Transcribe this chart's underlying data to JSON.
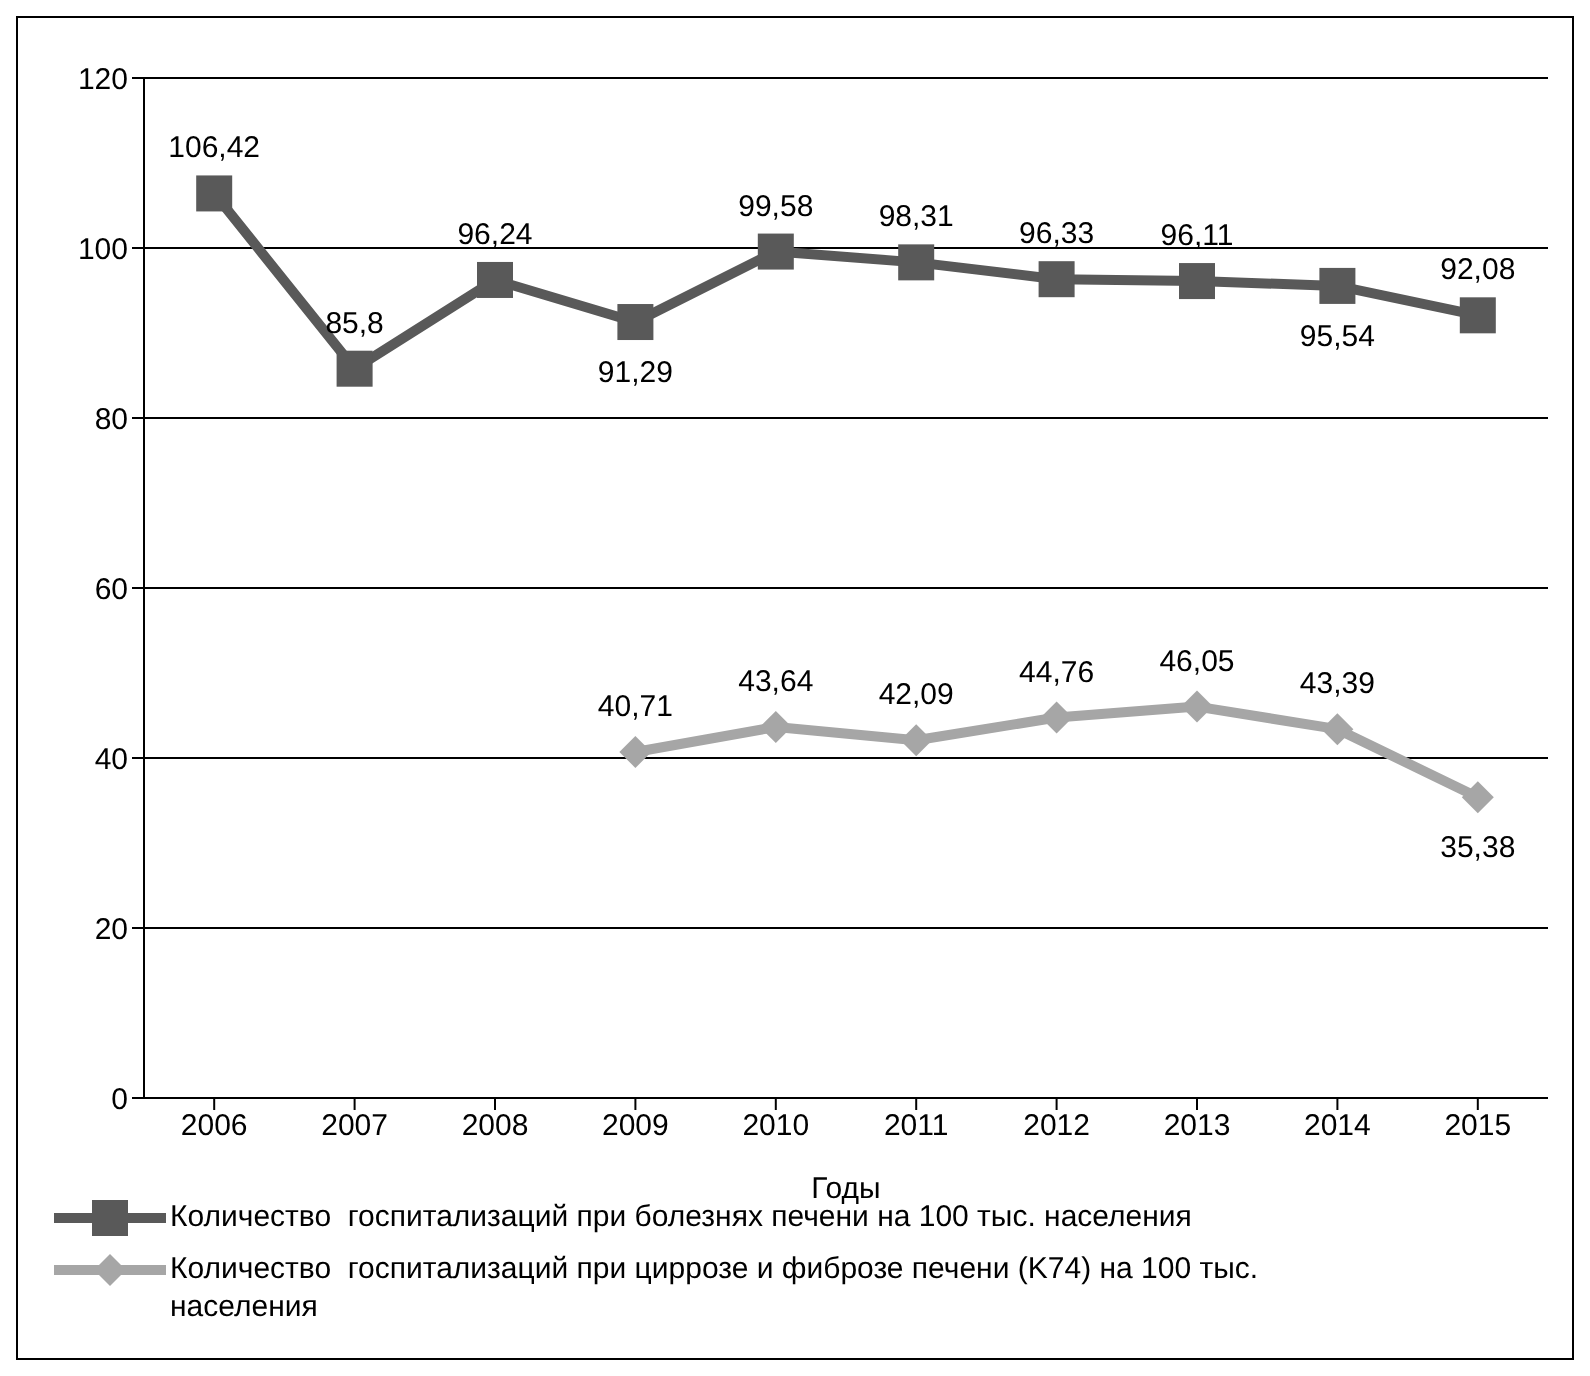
{
  "chart_data": {
    "type": "line",
    "xlabel": "Годы",
    "categories": [
      "2006",
      "2007",
      "2008",
      "2009",
      "2010",
      "2011",
      "2012",
      "2013",
      "2014",
      "2015"
    ],
    "series": [
      {
        "name": "Количество  госпитализаций при болезнях печени на 100 тыс. населения",
        "color": "#595959",
        "marker": "square",
        "values": [
          106.42,
          85.8,
          96.24,
          91.29,
          99.58,
          98.31,
          96.33,
          96.11,
          95.54,
          92.08
        ],
        "value_labels": [
          "106,42",
          "85,8",
          "96,24",
          "91,29",
          "99,58",
          "98,31",
          "96,33",
          "96,11",
          "95,54",
          "92,08"
        ]
      },
      {
        "name": "Количество  госпитализаций при циррозе и фиброзе печени (K74) на 100 тыс. населения",
        "color": "#a6a6a6",
        "marker": "diamond",
        "values": [
          null,
          null,
          null,
          40.71,
          43.64,
          42.09,
          44.76,
          46.05,
          43.39,
          35.38
        ],
        "value_labels": [
          null,
          null,
          null,
          "40,71",
          "43,64",
          "42,09",
          "44,76",
          "46,05",
          "43,39",
          "35,38"
        ]
      }
    ],
    "ylim": [
      0,
      120
    ],
    "yticks": [
      0,
      20,
      40,
      60,
      80,
      100,
      120
    ],
    "grid": "y",
    "legend": "bottom",
    "line_style": "solid"
  }
}
